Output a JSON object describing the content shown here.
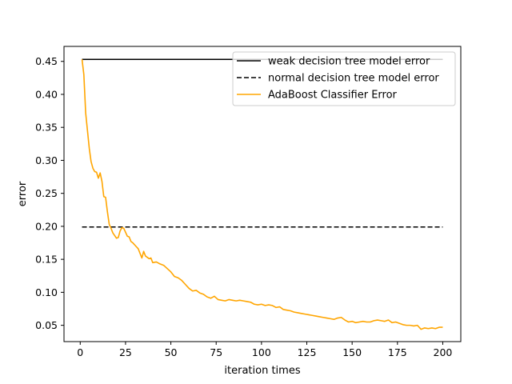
{
  "chart_data": {
    "type": "line",
    "title": "",
    "xlabel": "iteration times",
    "ylabel": "error",
    "xlim": [
      -8.95,
      209.95
    ],
    "ylim": [
      0.0253,
      0.4727
    ],
    "xticks": [
      0,
      25,
      50,
      75,
      100,
      125,
      150,
      175,
      200
    ],
    "yticks": [
      0.05,
      0.1,
      0.15,
      0.2,
      0.25,
      0.3,
      0.35,
      0.4,
      0.45
    ],
    "grid": false,
    "legend_position": "top-right",
    "series": [
      {
        "name": "weak decision tree model error",
        "color": "#000000",
        "style": "solid",
        "x": [
          1,
          200
        ],
        "y": [
          0.453,
          0.453
        ]
      },
      {
        "name": "normal decision tree model error",
        "color": "#000000",
        "style": "dashed",
        "x": [
          1,
          200
        ],
        "y": [
          0.199,
          0.199
        ]
      },
      {
        "name": "AdaBoost Classifier Error",
        "color": "#ffa500",
        "style": "solid",
        "x": [
          1,
          2,
          3,
          4,
          5,
          6,
          7,
          8,
          9,
          10,
          11,
          12,
          13,
          14,
          15,
          16,
          17,
          18,
          19,
          20,
          21,
          22,
          23,
          24,
          25,
          26,
          27,
          28,
          29,
          30,
          31,
          32,
          33,
          34,
          35,
          36,
          37,
          38,
          39,
          40,
          42,
          44,
          46,
          48,
          50,
          52,
          54,
          56,
          58,
          60,
          62,
          64,
          66,
          68,
          70,
          72,
          74,
          76,
          78,
          80,
          82,
          84,
          86,
          88,
          90,
          92,
          94,
          96,
          98,
          100,
          102,
          104,
          106,
          108,
          110,
          112,
          114,
          116,
          118,
          120,
          122,
          124,
          126,
          128,
          130,
          132,
          134,
          136,
          138,
          140,
          142,
          144,
          146,
          148,
          150,
          152,
          154,
          156,
          158,
          160,
          162,
          164,
          166,
          168,
          170,
          172,
          174,
          176,
          178,
          180,
          182,
          184,
          186,
          188,
          190,
          192,
          194,
          196,
          198,
          200
        ],
        "y": [
          0.453,
          0.43,
          0.372,
          0.345,
          0.318,
          0.298,
          0.288,
          0.283,
          0.282,
          0.273,
          0.281,
          0.268,
          0.245,
          0.244,
          0.222,
          0.203,
          0.197,
          0.19,
          0.186,
          0.182,
          0.183,
          0.193,
          0.198,
          0.197,
          0.191,
          0.185,
          0.184,
          0.177,
          0.175,
          0.172,
          0.169,
          0.166,
          0.159,
          0.152,
          0.162,
          0.155,
          0.153,
          0.151,
          0.152,
          0.145,
          0.146,
          0.143,
          0.141,
          0.136,
          0.131,
          0.124,
          0.122,
          0.118,
          0.112,
          0.106,
          0.102,
          0.103,
          0.099,
          0.097,
          0.093,
          0.091,
          0.094,
          0.089,
          0.088,
          0.087,
          0.089,
          0.088,
          0.087,
          0.088,
          0.087,
          0.086,
          0.085,
          0.082,
          0.081,
          0.082,
          0.08,
          0.081,
          0.08,
          0.077,
          0.078,
          0.074,
          0.073,
          0.072,
          0.07,
          0.069,
          0.068,
          0.067,
          0.066,
          0.065,
          0.064,
          0.063,
          0.062,
          0.061,
          0.06,
          0.059,
          0.061,
          0.062,
          0.058,
          0.055,
          0.056,
          0.054,
          0.055,
          0.056,
          0.055,
          0.055,
          0.057,
          0.058,
          0.057,
          0.056,
          0.058,
          0.054,
          0.055,
          0.053,
          0.051,
          0.05,
          0.05,
          0.049,
          0.05,
          0.044,
          0.046,
          0.045,
          0.046,
          0.045,
          0.047,
          0.047
        ]
      }
    ]
  }
}
